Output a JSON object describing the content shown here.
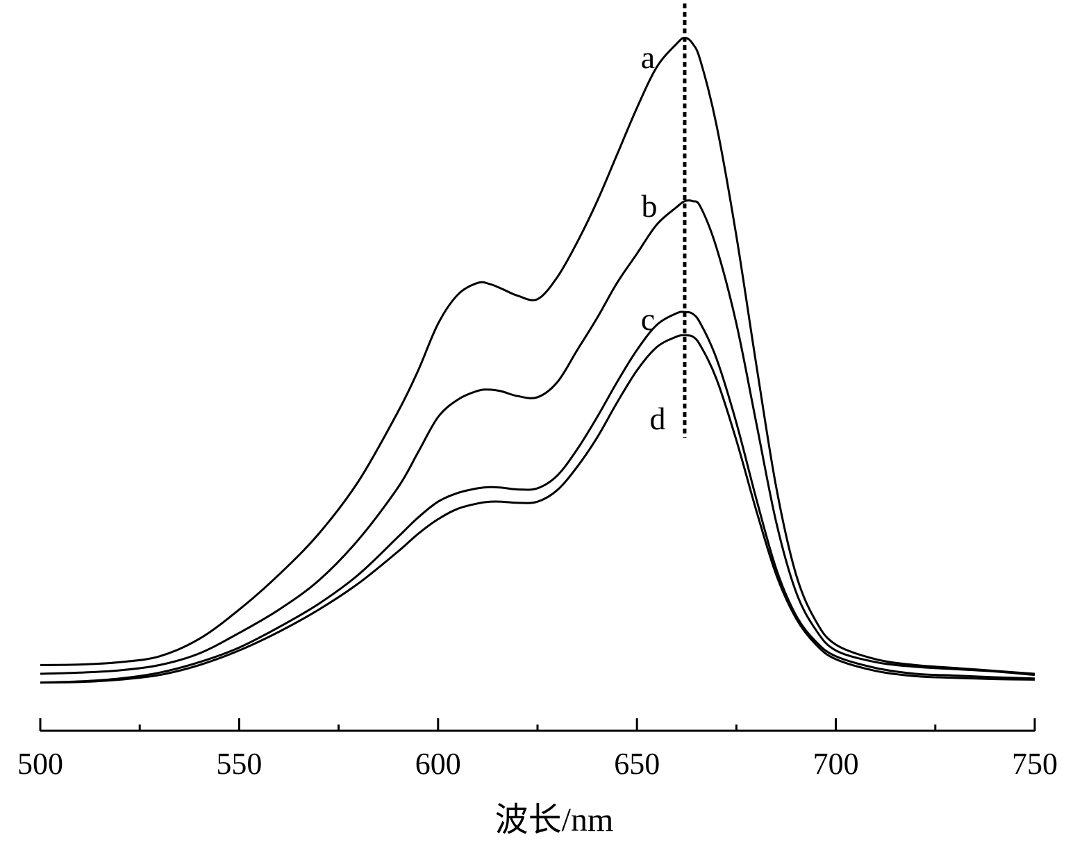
{
  "chart_data": {
    "type": "line",
    "xlabel": "波长/nm",
    "ylabel": "",
    "xlim": [
      500,
      750
    ],
    "major_ticks": [
      500,
      550,
      600,
      650,
      700,
      750
    ],
    "minor_ticks": [
      525,
      575,
      625,
      675,
      725
    ],
    "grid": false,
    "reference_line": {
      "x": 662,
      "style": "dotted"
    },
    "series": [
      {
        "label": "a",
        "x": [
          500,
          510,
          520,
          530,
          540,
          550,
          560,
          570,
          580,
          590,
          595,
          600,
          605,
          610,
          613,
          616,
          620,
          625,
          630,
          635,
          640,
          645,
          650,
          655,
          660,
          662,
          664,
          666,
          670,
          675,
          680,
          685,
          690,
          695,
          700,
          710,
          720,
          730,
          740,
          750
        ],
        "y": [
          0.015,
          0.016,
          0.02,
          0.03,
          0.06,
          0.11,
          0.17,
          0.24,
          0.33,
          0.45,
          0.52,
          0.6,
          0.65,
          0.67,
          0.668,
          0.66,
          0.648,
          0.642,
          0.68,
          0.74,
          0.81,
          0.89,
          0.97,
          1.04,
          1.08,
          1.09,
          1.08,
          1.05,
          0.94,
          0.75,
          0.53,
          0.32,
          0.17,
          0.09,
          0.05,
          0.025,
          0.015,
          0.01,
          0.005,
          0.0
        ]
      },
      {
        "label": "b",
        "x": [
          500,
          510,
          520,
          530,
          540,
          550,
          560,
          570,
          580,
          590,
          595,
          600,
          605,
          610,
          613,
          616,
          620,
          625,
          630,
          635,
          640,
          645,
          650,
          655,
          660,
          662,
          664,
          666,
          670,
          675,
          680,
          685,
          690,
          695,
          700,
          710,
          720,
          730,
          740,
          750
        ],
        "y": [
          0.0,
          0.002,
          0.006,
          0.015,
          0.035,
          0.07,
          0.11,
          0.16,
          0.23,
          0.32,
          0.38,
          0.44,
          0.47,
          0.485,
          0.487,
          0.484,
          0.476,
          0.474,
          0.5,
          0.555,
          0.61,
          0.67,
          0.72,
          0.77,
          0.8,
          0.81,
          0.81,
          0.8,
          0.73,
          0.6,
          0.43,
          0.26,
          0.14,
          0.075,
          0.04,
          0.02,
          0.012,
          0.008,
          0.004,
          -0.002
        ]
      },
      {
        "label": "c",
        "x": [
          500,
          510,
          520,
          530,
          540,
          550,
          560,
          570,
          580,
          590,
          595,
          600,
          605,
          610,
          613,
          616,
          620,
          625,
          630,
          635,
          640,
          645,
          650,
          655,
          660,
          662,
          664,
          666,
          670,
          675,
          680,
          685,
          690,
          695,
          700,
          710,
          720,
          730,
          740,
          750
        ],
        "y": [
          -0.015,
          -0.013,
          -0.008,
          0.002,
          0.02,
          0.045,
          0.08,
          0.12,
          0.17,
          0.235,
          0.268,
          0.295,
          0.31,
          0.318,
          0.32,
          0.319,
          0.316,
          0.318,
          0.34,
          0.385,
          0.44,
          0.5,
          0.555,
          0.598,
          0.618,
          0.62,
          0.617,
          0.6,
          0.54,
          0.43,
          0.3,
          0.18,
          0.1,
          0.055,
          0.03,
          0.01,
          0.0,
          -0.003,
          -0.006,
          -0.008
        ]
      },
      {
        "label": "d",
        "x": [
          500,
          510,
          520,
          530,
          540,
          550,
          560,
          570,
          580,
          590,
          595,
          600,
          605,
          610,
          613,
          616,
          620,
          625,
          630,
          635,
          640,
          645,
          650,
          655,
          660,
          662,
          664,
          666,
          670,
          675,
          680,
          685,
          690,
          695,
          700,
          710,
          720,
          730,
          740,
          750
        ],
        "y": [
          -0.015,
          -0.014,
          -0.01,
          -0.002,
          0.015,
          0.04,
          0.072,
          0.11,
          0.155,
          0.21,
          0.24,
          0.265,
          0.283,
          0.292,
          0.295,
          0.295,
          0.293,
          0.295,
          0.315,
          0.355,
          0.405,
          0.465,
          0.52,
          0.56,
          0.578,
          0.58,
          0.578,
          0.562,
          0.505,
          0.4,
          0.28,
          0.17,
          0.095,
          0.05,
          0.025,
          0.005,
          -0.004,
          -0.007,
          -0.009,
          -0.01
        ]
      }
    ]
  }
}
